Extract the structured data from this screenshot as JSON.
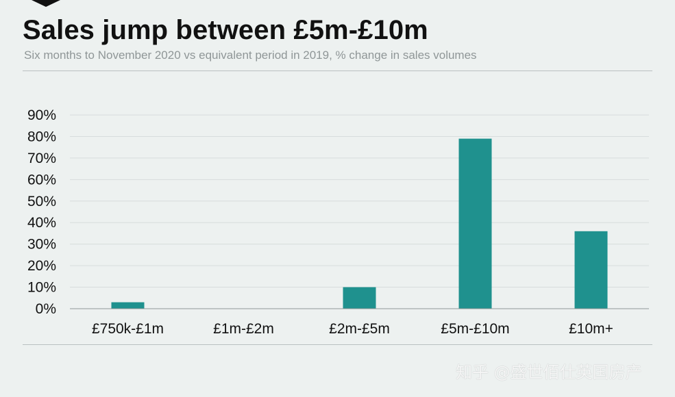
{
  "header": {
    "title": "Sales jump between £5m-£10m",
    "subtitle": "Six months to November 2020 vs equivalent  period in 2019, % change in sales volumes"
  },
  "watermark": "知乎 @盛世佰仕英国房产",
  "colors": {
    "bar": "#1f918e",
    "background": "#edf1f0",
    "subtitle": "#8f9697"
  },
  "chart_data": {
    "type": "bar",
    "title": "Sales jump between £5m-£10m",
    "subtitle": "Six months to November 2020 vs equivalent  period in 2019, % change in sales volumes",
    "categories": [
      "£750k-£1m",
      "£1m-£2m",
      "£2m-£5m",
      "£5m-£10m",
      "£10m+"
    ],
    "values": [
      3,
      0,
      10,
      79,
      36
    ],
    "ylim": [
      0,
      90
    ],
    "yticks": [
      0,
      10,
      20,
      30,
      40,
      50,
      60,
      70,
      80,
      90
    ],
    "ytick_labels": [
      "0%",
      "10%",
      "20%",
      "30%",
      "40%",
      "50%",
      "60%",
      "70%",
      "80%",
      "90%"
    ],
    "xlabel": "",
    "ylabel": "",
    "grid": true,
    "legend": "none"
  }
}
